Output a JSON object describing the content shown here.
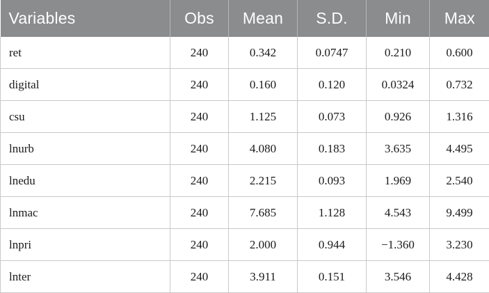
{
  "table": {
    "headers": [
      "Variables",
      "Obs",
      "Mean",
      "S.D.",
      "Min",
      "Max"
    ],
    "rows": [
      [
        "ret",
        "240",
        "0.342",
        "0.0747",
        "0.210",
        "0.600"
      ],
      [
        "digital",
        "240",
        "0.160",
        "0.120",
        "0.0324",
        "0.732"
      ],
      [
        "csu",
        "240",
        "1.125",
        "0.073",
        "0.926",
        "1.316"
      ],
      [
        "lnurb",
        "240",
        "4.080",
        "0.183",
        "3.635",
        "4.495"
      ],
      [
        "lnedu",
        "240",
        "2.215",
        "0.093",
        "1.969",
        "2.540"
      ],
      [
        "lnmac",
        "240",
        "7.685",
        "1.128",
        "4.543",
        "9.499"
      ],
      [
        "lnpri",
        "240",
        "2.000",
        "0.944",
        "−1.360",
        "3.230"
      ],
      [
        "lnter",
        "240",
        "3.911",
        "0.151",
        "3.546",
        "4.428"
      ]
    ]
  },
  "colors": {
    "header_bg": "#8b8c8e",
    "header_text": "#ffffff",
    "grid": "#c9c9c9"
  }
}
